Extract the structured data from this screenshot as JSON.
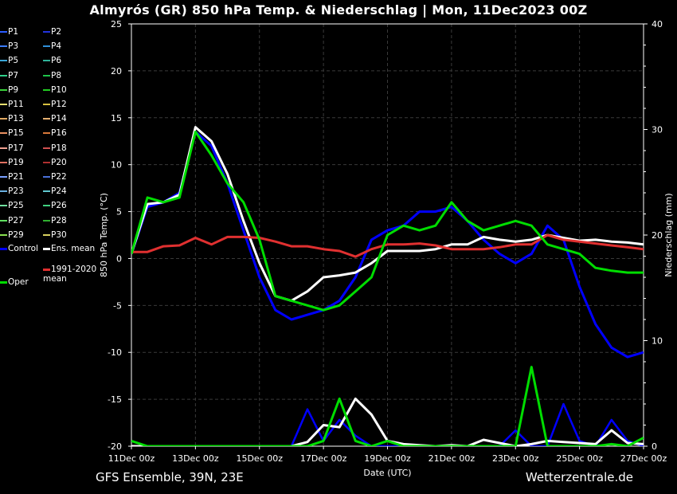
{
  "title": "Almyrós  (GR)  850 hPa Temp. & Niederschlag | Mon, 11Dec2023 00Z",
  "footer": {
    "left": "GFS Ensemble, 39N, 23E",
    "right": "Wetterzentrale.de"
  },
  "legend": [
    {
      "label": "P1",
      "color": "#2b5cff"
    },
    {
      "label": "P2",
      "color": "#2233dd"
    },
    {
      "label": "P3",
      "color": "#3a7cff"
    },
    {
      "label": "P4",
      "color": "#2f8fd8"
    },
    {
      "label": "P5",
      "color": "#3aa6d6"
    },
    {
      "label": "P6",
      "color": "#2fb39a"
    },
    {
      "label": "P7",
      "color": "#2fcf8a"
    },
    {
      "label": "P8",
      "color": "#1ec24a"
    },
    {
      "label": "P9",
      "color": "#3ad23a"
    },
    {
      "label": "P10",
      "color": "#22cc22"
    },
    {
      "label": "P11",
      "color": "#e8e070"
    },
    {
      "label": "P12",
      "color": "#d8c040"
    },
    {
      "label": "P13",
      "color": "#e0a860"
    },
    {
      "label": "P14",
      "color": "#e6b070"
    },
    {
      "label": "P15",
      "color": "#e89060"
    },
    {
      "label": "P16",
      "color": "#d8783a"
    },
    {
      "label": "P17",
      "color": "#f0a090"
    },
    {
      "label": "P18",
      "color": "#d05050"
    },
    {
      "label": "P19",
      "color": "#e07060"
    },
    {
      "label": "P20",
      "color": "#b03030"
    },
    {
      "label": "P21",
      "color": "#7aa0ff"
    },
    {
      "label": "P22",
      "color": "#4a70d8"
    },
    {
      "label": "P23",
      "color": "#6ab0e0"
    },
    {
      "label": "P24",
      "color": "#60c8d0"
    },
    {
      "label": "P25",
      "color": "#70e0a0"
    },
    {
      "label": "P26",
      "color": "#40d080"
    },
    {
      "label": "P27",
      "color": "#60e060"
    },
    {
      "label": "P28",
      "color": "#30b030"
    },
    {
      "label": "P29",
      "color": "#88e050"
    },
    {
      "label": "P30",
      "color": "#d8d060"
    },
    {
      "label": "Control",
      "color": "#0000ff"
    },
    {
      "label": "Ens. mean",
      "color": "#ffffff"
    },
    {
      "label": "1991-2020 mean",
      "color": "#e03030"
    },
    {
      "label": "Oper",
      "color": "#00dd00"
    }
  ],
  "chart_data": {
    "type": "line",
    "xlabel": "Date (UTC)",
    "ylabel": "850 hPa Temp. (°C)",
    "y2label": "Niederschlag (mm)",
    "ylim": [
      -20,
      25
    ],
    "y2lim": [
      0,
      40
    ],
    "yticks": [
      "25",
      "20",
      "15",
      "10",
      "5",
      "0",
      "-5",
      "-10",
      "-15",
      "-20"
    ],
    "y2ticks": [
      "40",
      "30",
      "20",
      "10",
      "0"
    ],
    "xlim_days": [
      0,
      16
    ],
    "xticks": [
      "11Dec 00z",
      "13Dec 00z",
      "15Dec 00z",
      "17Dec 00z",
      "19Dec 00z",
      "21Dec 00z",
      "23Dec 00z",
      "25Dec 00z",
      "27Dec 00z"
    ],
    "grid": true,
    "x_days": [
      0,
      0.5,
      1,
      1.5,
      2,
      2.5,
      3,
      3.5,
      4,
      4.5,
      5,
      5.5,
      6,
      6.5,
      7,
      7.5,
      8,
      8.5,
      9,
      9.5,
      10,
      10.5,
      11,
      11.5,
      12,
      12.5,
      13,
      13.5,
      14,
      14.5,
      15,
      15.5,
      16
    ],
    "series": [
      {
        "name": "Control",
        "color": "#0000ff",
        "width": 3,
        "values": [
          0.5,
          5.5,
          6,
          7,
          13.5,
          12,
          8,
          3,
          -2,
          -5.5,
          -6.5,
          -6,
          -5.5,
          -4.5,
          -2,
          2,
          3,
          3.5,
          5,
          5,
          5.5,
          4,
          2,
          0.5,
          -0.5,
          0.5,
          3.5,
          2,
          -3,
          -7,
          -9.5,
          -10.5,
          -10
        ]
      },
      {
        "name": "Ens. mean",
        "color": "#ffffff",
        "width": 3,
        "values": [
          0.5,
          5.8,
          6,
          6.8,
          14,
          12.5,
          9,
          4,
          -0.5,
          -4,
          -4.5,
          -3.5,
          -2,
          -1.8,
          -1.5,
          -0.5,
          0.8,
          0.8,
          0.8,
          1,
          1.5,
          1.5,
          2.3,
          2,
          1.8,
          2,
          2.5,
          2.2,
          1.9,
          2,
          1.8,
          1.7,
          1.5
        ]
      },
      {
        "name": "1991-2020 mean",
        "color": "#e03030",
        "width": 3,
        "values": [
          0.7,
          0.7,
          1.3,
          1.4,
          2.2,
          1.5,
          2.3,
          2.3,
          2.2,
          1.8,
          1.3,
          1.3,
          1,
          0.8,
          0.2,
          1,
          1.5,
          1.5,
          1.6,
          1.4,
          1,
          1,
          1,
          1.2,
          1.5,
          1.5,
          2.5,
          2,
          1.8,
          1.6,
          1.4,
          1.2,
          1
        ]
      },
      {
        "name": "Oper",
        "color": "#00dd00",
        "width": 3,
        "values": [
          0.5,
          6.5,
          6,
          6.5,
          13.5,
          11,
          8,
          6,
          2,
          -4,
          -4.5,
          -5,
          -5.5,
          -5,
          -3.5,
          -2,
          2.5,
          3.5,
          3,
          3.5,
          6,
          4,
          3,
          3.5,
          4,
          3.5,
          1.5,
          1,
          0.5,
          -1,
          -1.3,
          -1.5,
          -1.5
        ]
      }
    ],
    "precip_series": [
      {
        "name": "Control",
        "color": "#0000ff",
        "values_mm": [
          0,
          0,
          0,
          0,
          0,
          0,
          0,
          0,
          0,
          0,
          0,
          3.5,
          0.5,
          2.5,
          1,
          0,
          0,
          0,
          0,
          0,
          0,
          0,
          0,
          0,
          1.5,
          0,
          0,
          4,
          0.5,
          0,
          2.5,
          0.5,
          0
        ]
      },
      {
        "name": "Ens. mean",
        "color": "#ffffff",
        "width": 3,
        "values_mm": [
          0,
          0,
          0,
          0,
          0,
          0,
          0,
          0,
          0,
          0,
          0,
          0.4,
          2,
          1.8,
          4.5,
          3,
          0.5,
          0.2,
          0.1,
          0,
          0.1,
          0,
          0.6,
          0.3,
          0,
          0.2,
          0.5,
          0.4,
          0.3,
          0.2,
          1.5,
          0.3,
          0.2
        ]
      },
      {
        "name": "Oper",
        "color": "#00dd00",
        "width": 3,
        "values_mm": [
          0.5,
          0,
          0,
          0,
          0,
          0,
          0,
          0,
          0,
          0,
          0,
          0,
          0.5,
          4.5,
          0.5,
          0,
          0.5,
          0,
          0,
          0,
          0,
          0,
          0,
          0,
          0,
          7.5,
          0,
          0,
          0,
          0,
          0.2,
          0,
          0.8
        ]
      }
    ]
  }
}
